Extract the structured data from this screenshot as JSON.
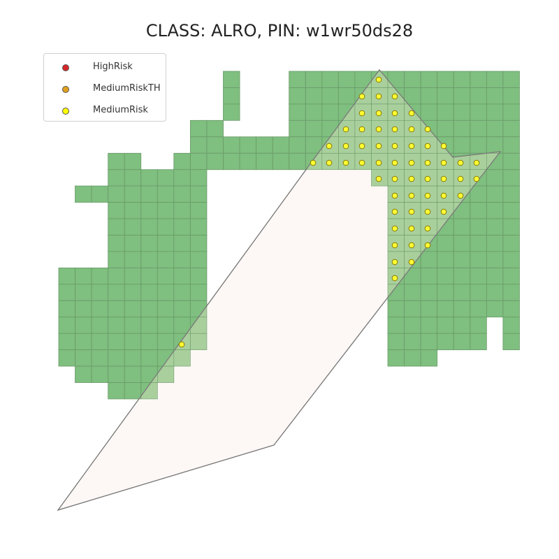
{
  "title": "CLASS: ALRO, PIN: w1wr50ds28",
  "legend": {
    "items": [
      {
        "label": "HighRisk",
        "color": "#d62728"
      },
      {
        "label": "MediumRiskTH",
        "color": "#e0a020"
      },
      {
        "label": "MediumRisk",
        "color": "#ffff00"
      }
    ]
  },
  "colors": {
    "grid_fill": "#7fbf7f",
    "grid_stroke": "#6a9a6a",
    "parcel_fill": "#fdf8f5",
    "parcel_stroke": "#999999",
    "overlap_fill": "#a9cf9c",
    "point_fill": "#ffff33",
    "point_stroke": "#8a7a00"
  }
}
